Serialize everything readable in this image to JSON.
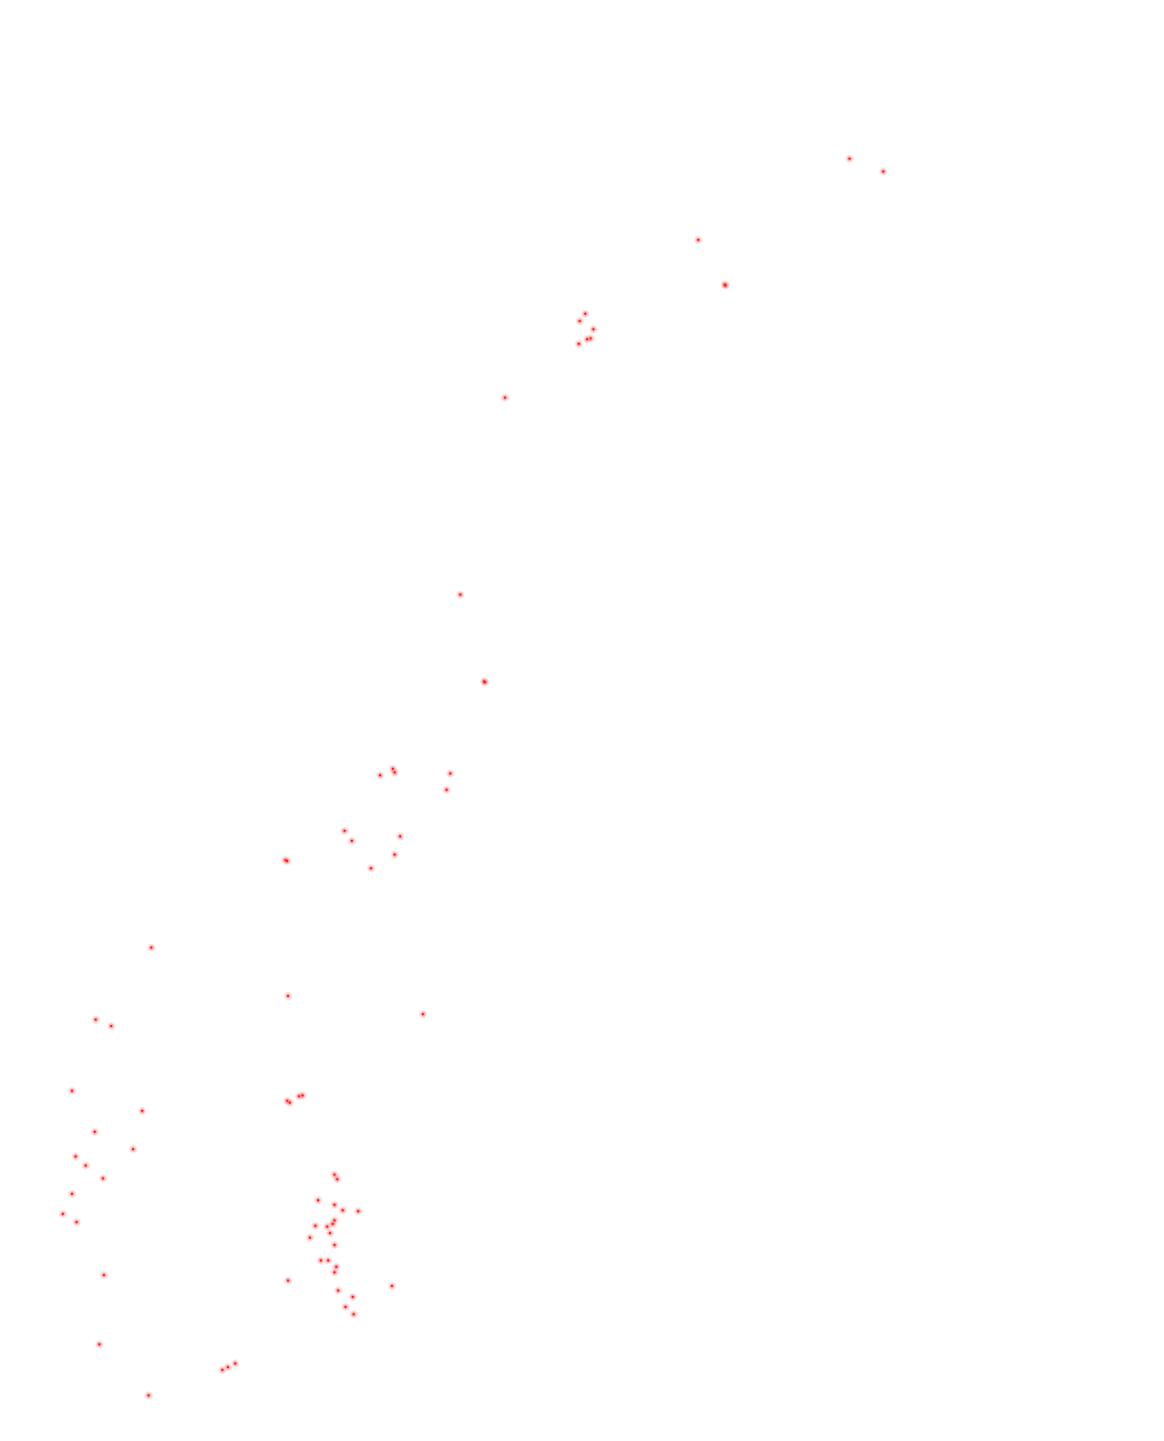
{
  "map": {
    "background_color": "#ffffff",
    "marker_color": "#ff0000",
    "marker_style": "blurred-dot",
    "labels_visible": false,
    "marker_count": 86
  }
}
